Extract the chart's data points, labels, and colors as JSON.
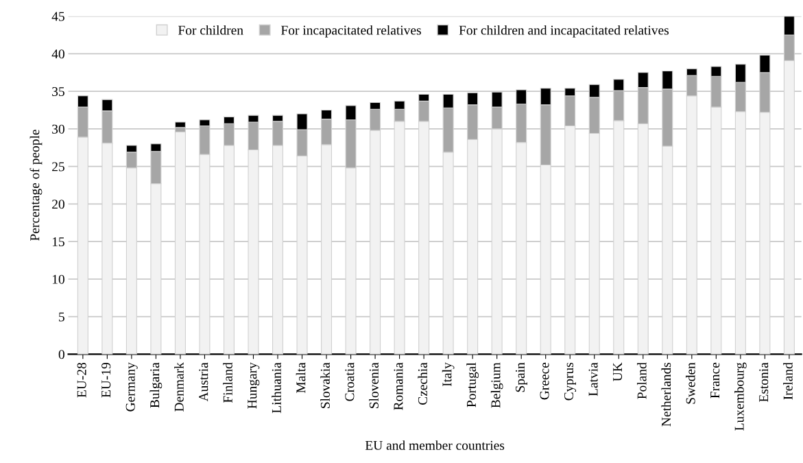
{
  "chart_data": {
    "type": "bar",
    "stacked": true,
    "xlabel": "EU and member countries",
    "ylabel": "Percentage of people",
    "categories": [
      "EU-28",
      "EU-19",
      "Germany",
      "Bulgaria",
      "Denmark",
      "Austria",
      "Finland",
      "Hungary",
      "Lithuania",
      "Malta",
      "Slovakia",
      "Croatia",
      "Slovenia",
      "Romania",
      "Czechia",
      "Italy",
      "Portugal",
      "Belgium",
      "Spain",
      "Greece",
      "Cyprus",
      "Latvia",
      "UK",
      "Poland",
      "Netherlands",
      "Sweden",
      "France",
      "Luxembourg",
      "Estonia",
      "Ireland"
    ],
    "series": [
      {
        "name": "For children",
        "color": "#f2f2f2",
        "values": [
          28.9,
          28.1,
          24.8,
          22.7,
          29.6,
          26.6,
          27.8,
          27.2,
          27.8,
          26.4,
          27.9,
          24.8,
          29.8,
          31.0,
          31.0,
          26.9,
          28.6,
          30.0,
          28.2,
          25.2,
          30.4,
          29.4,
          31.1,
          30.7,
          27.7,
          34.4,
          32.9,
          32.3,
          32.2,
          39.1
        ]
      },
      {
        "name": "For incapacitated relatives",
        "color": "#a6a6a6",
        "values": [
          4.0,
          4.3,
          2.1,
          4.3,
          0.6,
          3.8,
          2.9,
          3.7,
          3.2,
          3.5,
          3.4,
          6.4,
          2.8,
          1.6,
          2.7,
          5.9,
          4.6,
          2.9,
          5.1,
          8.0,
          4.0,
          4.8,
          4.0,
          4.8,
          7.6,
          2.7,
          4.1,
          3.9,
          5.3,
          3.4
        ]
      },
      {
        "name": "For children and incapacitated relatives",
        "color": "#000000",
        "values": [
          1.5,
          1.5,
          0.9,
          1.0,
          0.7,
          0.8,
          0.9,
          0.9,
          0.8,
          2.1,
          1.2,
          1.9,
          0.9,
          1.1,
          0.9,
          1.8,
          1.6,
          2.0,
          1.9,
          2.2,
          1.0,
          1.7,
          1.5,
          2.0,
          2.4,
          0.9,
          1.3,
          2.4,
          2.3,
          2.5
        ]
      }
    ],
    "ylim": [
      0,
      45
    ],
    "yticks": [
      0,
      5,
      10,
      15,
      20,
      25,
      30,
      35,
      40,
      45
    ],
    "grid": "y",
    "legend": "top"
  }
}
